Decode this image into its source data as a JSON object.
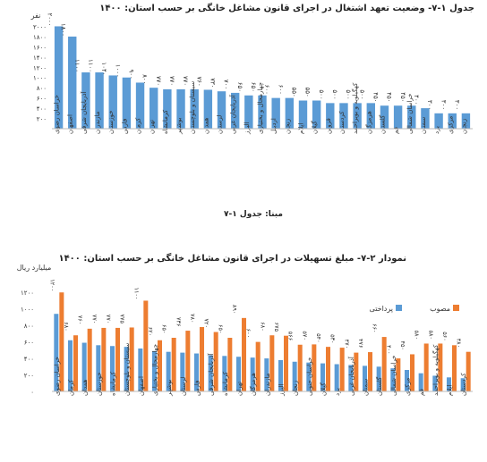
{
  "chart_data": [
    {
      "type": "bar",
      "title": "جدول ۱-۷- وضعیت تعهد اشتغال در اجرای قانون مشاغل خانگی بر حسب استان: ۱۴۰۰",
      "ylabel": "نفر",
      "ylim": [
        0,
        2200
      ],
      "y_ticks": [
        "۲۰۰",
        "۴۰۰",
        "۶۰۰",
        "۸۰۰",
        "۱۰۰۰",
        "۱۲۰۰",
        "۱۴۰۰",
        "۱۶۰۰",
        "۱۸۰۰",
        "۲۰۰۰"
      ],
      "y_tick_values": [
        200,
        400,
        600,
        800,
        1000,
        1200,
        1400,
        1600,
        1800,
        2000
      ],
      "color": "#5b9bd5",
      "categories": [
        "خراسان رضوی",
        "اصفهان",
        "آذربایجان شرقی",
        "مازندران",
        "خوزستان",
        "فارس",
        "کرمان",
        "تهران",
        "کرمانشاه",
        "بوشهر",
        "سیستان و بلوچستان",
        "همدان",
        "لرستان",
        "آذربایجان غربی",
        "البرز",
        "چهارمحال و بختیاری",
        "اردبیل",
        "زنجان",
        "ایلام",
        "گیلان",
        "قزوین",
        "کردستان",
        "کهگیلویه و بویراحمد",
        "هرمزگان",
        "گلستان",
        "قم",
        "خراسان شمالی",
        "سمنان",
        "یزد",
        "مرکزی",
        "زنجان2"
      ],
      "values": [
        2000,
        1800,
        1100,
        1100,
        1040,
        1000,
        900,
        800,
        770,
        770,
        770,
        760,
        730,
        700,
        650,
        650,
        600,
        600,
        550,
        550,
        500,
        500,
        500,
        500,
        450,
        450,
        450,
        400,
        300,
        300,
        300
      ],
      "value_labels": [
        "۲۰۰۰",
        "۱۸۰۰",
        "۱۱۰۰",
        "۱۱۰۰",
        "۱۰۴۰",
        "۱۰۰۰",
        "۹۰۰",
        "۸۰۰",
        "۷۷۰",
        "۷۷۰",
        "۷۷۰",
        "۷۶۰",
        "۷۳۰",
        "۷۰۰",
        "۶۵۰",
        "۶۵۰",
        "۶۰۰",
        "۶۰۰",
        "۵۵۰",
        "۵۵۰",
        "۵۰۰",
        "۵۰۰",
        "۵۰۰",
        "۵۰۰",
        "۴۵۰",
        "۴۵۰",
        "۴۵۰",
        "۴۰۰",
        "۳۰۰",
        "۳۰۰",
        "۳۰۰"
      ]
    },
    {
      "type": "bar",
      "title": "نمودار ۲-۷- مبلغ تسهیلات در اجرای قانون مشاغل خانگی بر حسب استان: ۱۴۰۰",
      "ylabel": "میلیارد ریال",
      "ylim": [
        0,
        1300
      ],
      "y_ticks": [
        "۰",
        "۲۰۰",
        "۴۰۰",
        "۶۰۰",
        "۸۰۰",
        "۱۰۰۰",
        "۱۲۰۰"
      ],
      "y_tick_values": [
        0,
        200,
        400,
        600,
        800,
        1000,
        1200
      ],
      "legend": [
        {
          "name": "پرداختی",
          "color": "#5b9bd5"
        },
        {
          "name": "مصوب",
          "color": "#ed7d31"
        }
      ],
      "legend_position": "top",
      "categories": [
        "خراسان رضوی",
        "کرمان",
        "همدان",
        "خوزستان",
        "کرمانشاه",
        "سیستان و بلوچستان",
        "اصفهان",
        "چهارمحال و بختیاری",
        "بوشهر",
        "لرستان",
        "فارس",
        "آذربایجان شرقی",
        "کرمانشاه",
        "تهران",
        "هرمزگان",
        "مازندران",
        "البرز",
        "زنجان",
        "خراسان جنوبی",
        "گیلان",
        "یزد",
        "آذربایجان غربی",
        "سمنان",
        "گلستان",
        "خراسان شمالی",
        "مرکزی",
        "قم",
        "کهگیلویه و بویراحمد",
        "ایلام",
        "کردستان"
      ],
      "series": [
        {
          "name": "پرداختی",
          "values": [
            940,
            620,
            590,
            560,
            550,
            540,
            520,
            490,
            480,
            470,
            460,
            440,
            430,
            420,
            410,
            400,
            380,
            360,
            350,
            340,
            330,
            320,
            310,
            300,
            280,
            260,
            220,
            190,
            170,
            160
          ]
        },
        {
          "name": "مصوب",
          "values": [
            1200,
            680,
            760,
            770,
            770,
            775,
            1100,
            620,
            650,
            736,
            780,
            720,
            650,
            890,
            600,
            680,
            675,
            566,
            570,
            540,
            530,
            470,
            476,
            660,
            400,
            450,
            580,
            580,
            560,
            480
          ]
        }
      ],
      "value_labels_approved": [
        "۱۲۰۰",
        "۶۸۰",
        "۷۶۰",
        "۷۷۰",
        "۷۷۰",
        "۷۷۵",
        "۱۱۰۰",
        "۶۲۰",
        "۶۵۰",
        "۷۳۶",
        "۷۸۰",
        "۷۲۰",
        "۶۵۰",
        "۸۹۰",
        "۶۰۰",
        "۶۸۰",
        "۶۷۵",
        "۵۶۶",
        "۵۷۰",
        "۵۴۰",
        "۵۳۰",
        "۴۷۰",
        "۴۷۶",
        "۶۶۰",
        "۴۰۰",
        "۴۵۰",
        "۵۸۰",
        "۵۸۰",
        "۵۶۰",
        "۴۸۰"
      ]
    }
  ],
  "source_label": "مبنا: جدول ۱-۷"
}
